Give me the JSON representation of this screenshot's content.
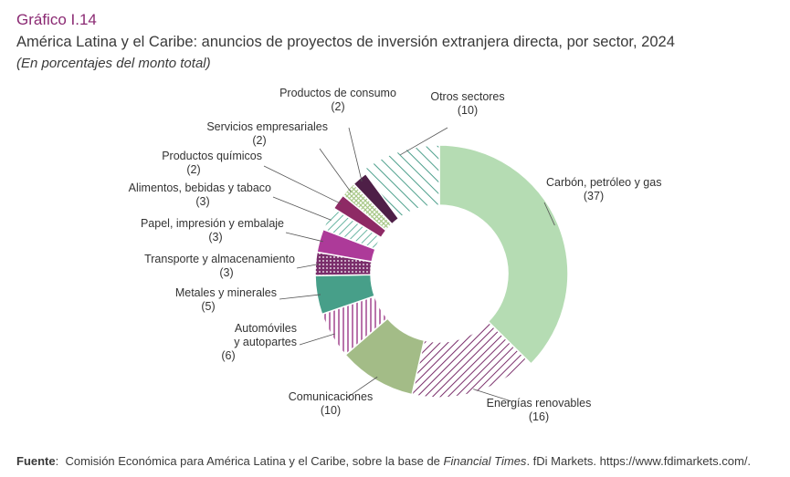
{
  "header": {
    "figure_number": "Gráfico I.14",
    "title": "América Latina y el Caribe: anuncios de proyectos de inversión extranjera directa, por sector, 2024",
    "subtitle": "(En porcentajes del monto total)"
  },
  "source": {
    "label": "Fuente",
    "text_before": "Comisión Económica para América Latina y el Caribe, sobre la base de ",
    "italic": "Financial Times",
    "text_after": ". fDi Markets. https://www.fdimarkets.com/."
  },
  "chart_data": {
    "type": "pie",
    "donut": true,
    "start": "12 o'clock, clockwise",
    "slices": [
      {
        "label": "Carbón, petróleo y gas",
        "value": 37,
        "value_text": "(37)",
        "color": "#b5dcb3",
        "pattern": "solid"
      },
      {
        "label": "Energías renovables",
        "value": 16,
        "value_text": "(16)",
        "color": "#7a2e6b",
        "pattern": "diagonal-hatch"
      },
      {
        "label": "Comunicaciones",
        "value": 10,
        "value_text": "(10)",
        "color": "#a3bc87",
        "pattern": "solid"
      },
      {
        "label": "Automóviles y autopartes",
        "value": 6,
        "value_text": "(6)",
        "color": "#9b3987",
        "pattern": "vertical-lines"
      },
      {
        "label": "Metales y minerales",
        "value": 5,
        "value_text": "(5)",
        "color": "#479f89",
        "pattern": "solid"
      },
      {
        "label": "Transporte y almacenamiento",
        "value": 3,
        "value_text": "(3)",
        "color": "#7a2e6b",
        "pattern": "dots"
      },
      {
        "label": "Papel, impresión y embalaje",
        "value": 3,
        "value_text": "(3)",
        "color": "#ad3a99",
        "pattern": "solid"
      },
      {
        "label": "Alimentos, bebidas y tabaco",
        "value": 3,
        "value_text": "(3)",
        "color": "#6bb6a3",
        "pattern": "diagonal-hatch"
      },
      {
        "label": "Productos químicos",
        "value": 2,
        "value_text": "(2)",
        "color": "#8e2a65",
        "pattern": "solid"
      },
      {
        "label": "Servicios empresariales",
        "value": 2,
        "value_text": "(2)",
        "color": "#a8c888",
        "pattern": "crosshatch"
      },
      {
        "label": "Productos de consumo",
        "value": 2,
        "value_text": "(2)",
        "color": "#4e1f47",
        "pattern": "solid"
      },
      {
        "label": "Otros sectores",
        "value": 10,
        "value_text": "(10)",
        "color": "#4ea08c",
        "pattern": "diagonal-hatch"
      }
    ]
  }
}
